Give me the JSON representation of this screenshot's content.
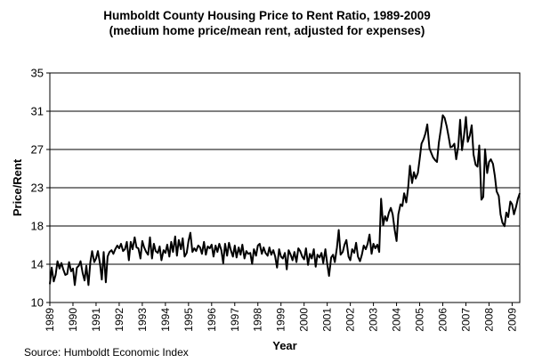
{
  "chart_data": {
    "type": "line",
    "title": "Humboldt County Housing Price to Rent Ratio, 1989-2009",
    "subtitle": "(medium home price/mean rent, adjusted for expenses)",
    "xlabel": "Year",
    "ylabel": "Price/Rent",
    "source": "Source: Humboldt Economic Index",
    "ylim": [
      10,
      35
    ],
    "yticks": [
      "10",
      "14",
      "18",
      "23",
      "27",
      "31",
      "35"
    ],
    "xlim": [
      1989,
      2009.33
    ],
    "xticks": [
      "1989",
      "1990",
      "1991",
      "1992",
      "1993",
      "1994",
      "1995",
      "1996",
      "1997",
      "1998",
      "1999",
      "2000",
      "2001",
      "2002",
      "2003",
      "2004",
      "2005",
      "2006",
      "2007",
      "2008",
      "2009"
    ],
    "grid": "horizontal",
    "line_color": "#000000",
    "series": [
      {
        "x": [
          1989.0,
          1989.08,
          1989.17,
          1989.25,
          1989.33,
          1989.42,
          1989.5,
          1989.58,
          1989.67,
          1989.75,
          1989.83,
          1989.92,
          1990.0,
          1990.08,
          1990.17,
          1990.25,
          1990.33,
          1990.42,
          1990.5,
          1990.58,
          1990.67,
          1990.75,
          1990.83,
          1990.92,
          1991.0,
          1991.08,
          1991.17,
          1991.25,
          1991.33,
          1991.42,
          1991.5,
          1991.58,
          1991.67,
          1991.75,
          1991.83,
          1991.92,
          1992.0,
          1992.08,
          1992.17,
          1992.25,
          1992.33,
          1992.42,
          1992.5,
          1992.58,
          1992.67,
          1992.75,
          1992.83,
          1992.92,
          1993.0,
          1993.08,
          1993.17,
          1993.25,
          1993.33,
          1993.42,
          1993.5,
          1993.58,
          1993.67,
          1993.75,
          1993.83,
          1993.92,
          1994.0,
          1994.08,
          1994.17,
          1994.25,
          1994.33,
          1994.42,
          1994.5,
          1994.58,
          1994.67,
          1994.75,
          1994.83,
          1994.92,
          1995.0,
          1995.08,
          1995.17,
          1995.25,
          1995.33,
          1995.42,
          1995.5,
          1995.58,
          1995.67,
          1995.75,
          1995.83,
          1995.92,
          1996.0,
          1996.08,
          1996.17,
          1996.25,
          1996.33,
          1996.42,
          1996.5,
          1996.58,
          1996.67,
          1996.75,
          1996.83,
          1996.92,
          1997.0,
          1997.08,
          1997.17,
          1997.25,
          1997.33,
          1997.42,
          1997.5,
          1997.58,
          1997.67,
          1997.75,
          1997.83,
          1997.92,
          1998.0,
          1998.08,
          1998.17,
          1998.25,
          1998.33,
          1998.42,
          1998.5,
          1998.58,
          1998.67,
          1998.75,
          1998.83,
          1998.92,
          1999.0,
          1999.08,
          1999.17,
          1999.25,
          1999.33,
          1999.42,
          1999.5,
          1999.58,
          1999.67,
          1999.75,
          1999.83,
          1999.92,
          2000.0,
          2000.08,
          2000.17,
          2000.25,
          2000.33,
          2000.42,
          2000.5,
          2000.58,
          2000.67,
          2000.75,
          2000.83,
          2000.92,
          2001.0,
          2001.08,
          2001.17,
          2001.25,
          2001.33,
          2001.42,
          2001.5,
          2001.58,
          2001.67,
          2001.75,
          2001.83,
          2001.92,
          2002.0,
          2002.08,
          2002.17,
          2002.25,
          2002.33,
          2002.42,
          2002.5,
          2002.58,
          2002.67,
          2002.75,
          2002.83,
          2002.92,
          2003.0,
          2003.08,
          2003.17,
          2003.25,
          2003.33,
          2003.42,
          2003.5,
          2003.58,
          2003.67,
          2003.75,
          2003.83,
          2003.92,
          2004.0,
          2004.08,
          2004.17,
          2004.25,
          2004.33,
          2004.42,
          2004.5,
          2004.58,
          2004.67,
          2004.75,
          2004.83,
          2004.92,
          2005.0,
          2005.08,
          2005.17,
          2005.25,
          2005.33,
          2005.42,
          2005.5,
          2005.58,
          2005.67,
          2005.75,
          2005.83,
          2005.92,
          2006.0,
          2006.08,
          2006.17,
          2006.25,
          2006.33,
          2006.42,
          2006.5,
          2006.58,
          2006.67,
          2006.75,
          2006.83,
          2006.92,
          2007.0,
          2007.08,
          2007.17,
          2007.25,
          2007.33,
          2007.42,
          2007.5,
          2007.58,
          2007.67,
          2007.75,
          2007.83,
          2007.92,
          2008.0,
          2008.08,
          2008.17,
          2008.25,
          2008.33,
          2008.42,
          2008.5,
          2008.58,
          2008.67,
          2008.75,
          2008.83,
          2008.92,
          2009.0,
          2009.08,
          2009.17,
          2009.25,
          2009.33
        ],
        "y": [
          12.0,
          13.8,
          12.3,
          13.0,
          14.5,
          13.7,
          14.3,
          13.6,
          13.0,
          13.1,
          14.4,
          13.4,
          13.7,
          11.9,
          13.8,
          14.0,
          14.5,
          13.2,
          12.4,
          14.0,
          11.9,
          14.4,
          15.6,
          14.4,
          14.8,
          15.6,
          14.2,
          12.5,
          15.5,
          12.2,
          15.0,
          15.5,
          15.7,
          15.3,
          15.8,
          16.2,
          15.9,
          16.4,
          15.6,
          15.8,
          16.6,
          14.6,
          16.6,
          15.8,
          17.1,
          16.0,
          15.9,
          14.8,
          16.7,
          16.0,
          15.5,
          15.2,
          17.1,
          14.8,
          16.4,
          15.6,
          15.4,
          16.1,
          14.6,
          15.7,
          15.4,
          16.3,
          15.0,
          16.6,
          15.5,
          17.2,
          15.1,
          16.8,
          15.8,
          17.0,
          15.0,
          15.4,
          16.7,
          17.6,
          15.5,
          15.9,
          15.6,
          16.2,
          16.0,
          15.3,
          16.6,
          15.2,
          16.1,
          15.9,
          16.3,
          15.0,
          16.2,
          15.5,
          16.4,
          15.7,
          14.3,
          16.4,
          15.1,
          16.5,
          15.7,
          15.0,
          16.2,
          14.9,
          16.0,
          15.2,
          16.3,
          14.8,
          15.6,
          15.3,
          15.4,
          14.2,
          15.8,
          15.1,
          16.2,
          16.4,
          15.3,
          16.0,
          15.4,
          15.1,
          16.0,
          15.2,
          15.7,
          15.0,
          13.8,
          15.8,
          15.0,
          14.8,
          15.4,
          13.6,
          15.7,
          15.2,
          14.6,
          15.5,
          14.4,
          15.9,
          15.6,
          15.0,
          14.7,
          15.9,
          14.1,
          15.3,
          14.8,
          15.8,
          13.9,
          15.2,
          14.9,
          15.4,
          14.3,
          15.8,
          14.2,
          12.9,
          14.9,
          15.2,
          14.4,
          16.0,
          17.9,
          15.2,
          15.5,
          16.3,
          16.8,
          15.0,
          14.6,
          15.8,
          15.4,
          16.5,
          15.0,
          14.5,
          15.2,
          16.2,
          15.8,
          16.4,
          17.4,
          15.3,
          16.4,
          15.9,
          16.3,
          15.5,
          21.3,
          18.4,
          19.4,
          18.9,
          19.8,
          20.3,
          19.6,
          17.9,
          16.7,
          19.6,
          20.7,
          20.5,
          21.9,
          20.9,
          22.5,
          24.9,
          23.0,
          24.2,
          23.5,
          24.1,
          25.6,
          27.3,
          27.8,
          28.4,
          29.4,
          26.8,
          26.3,
          25.8,
          25.5,
          25.3,
          27.4,
          28.9,
          30.4,
          30.1,
          29.2,
          28.1,
          26.9,
          27.0,
          27.3,
          25.6,
          27.0,
          29.9,
          26.6,
          28.2,
          30.2,
          27.5,
          28.2,
          29.3,
          26.1,
          25.0,
          24.8,
          27.1,
          21.2,
          21.5,
          26.7,
          24.1,
          25.3,
          25.6,
          25.1,
          23.8,
          22.1,
          21.6,
          19.6,
          18.7,
          18.3,
          19.8,
          19.3,
          21.0,
          20.7,
          19.6,
          20.4,
          21.3,
          21.9
        ]
      }
    ]
  }
}
